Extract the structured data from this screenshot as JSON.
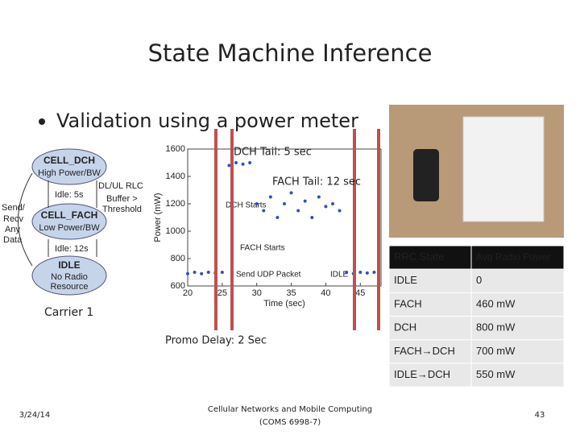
{
  "header": {
    "title": "State Machine Inference"
  },
  "bullet": "Validation using a power meter",
  "state_diagram": {
    "nodes": [
      {
        "label": "CELL_DCH",
        "sub": [
          "High Power/BW"
        ]
      },
      {
        "label": "CELL_FACH",
        "sub": [
          "Low Power/BW"
        ]
      },
      {
        "label": "IDLE",
        "sub": [
          "No Radio",
          "Resource"
        ]
      }
    ],
    "edges": [
      {
        "label": [
          "DL/UL RLC",
          "Buffer >",
          "Threshold"
        ]
      },
      {
        "label": [
          "Idle: 5s"
        ]
      },
      {
        "label": [
          "Idle: 12s"
        ]
      },
      {
        "label": [
          "Send/",
          "Recv",
          "Any",
          "Data"
        ]
      }
    ],
    "caption": "Carrier 1"
  },
  "power_plot": {
    "y_label": "Power (mW)",
    "x_label": "Time (sec)",
    "xlim": [
      20,
      48
    ],
    "ylim": [
      600,
      1600
    ],
    "xticks": [
      20,
      25,
      30,
      35,
      40,
      45
    ],
    "yticks": [
      600,
      800,
      1000,
      1200,
      1400,
      1600
    ],
    "color": "#3050c0",
    "x": [
      20,
      21,
      22,
      23,
      24,
      25,
      26,
      27,
      28,
      29,
      30,
      31,
      32,
      33,
      34,
      35,
      36,
      37,
      38,
      39,
      40,
      41,
      42,
      43,
      44,
      45,
      46,
      47
    ],
    "y": [
      690,
      700,
      690,
      700,
      695,
      700,
      1480,
      1500,
      1490,
      1500,
      1200,
      1150,
      1250,
      1100,
      1200,
      1280,
      1150,
      1220,
      1100,
      1250,
      1180,
      1200,
      1150,
      700,
      690,
      700,
      695,
      700
    ],
    "annotations": [
      "DCH Starts",
      "FACH Starts",
      "Send UDP Packet",
      "IDLE"
    ]
  },
  "callouts": [
    "DCH Tail: 5 sec",
    "FACH Tail: 12 sec",
    "Promo Delay: 2 Sec"
  ],
  "table": {
    "header": [
      "RRC State",
      "Avg Radio Power"
    ],
    "rows": [
      [
        "IDLE",
        "0"
      ],
      [
        "FACH",
        "460 mW"
      ],
      [
        "DCH",
        "800 mW"
      ],
      [
        "FACH→DCH",
        "700 mW"
      ],
      [
        "IDLE→DCH",
        "550 mW"
      ]
    ]
  },
  "footer": {
    "date": "3/24/14",
    "course": [
      "Cellular Networks and Mobile Computing",
      "(COMS 6998-7)"
    ],
    "page": "43"
  }
}
